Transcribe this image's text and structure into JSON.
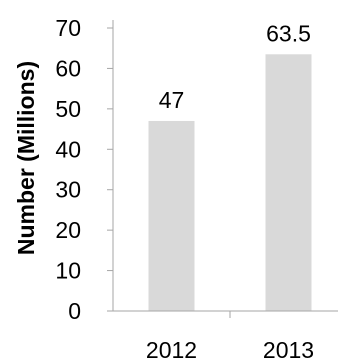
{
  "chart_data": {
    "type": "bar",
    "categories": [
      "2012",
      "2013"
    ],
    "values": [
      47,
      63.5
    ],
    "data_labels": [
      "47",
      "63.5"
    ],
    "title": "",
    "xlabel": "",
    "ylabel": "Number (Millions)",
    "ylim": [
      0,
      70
    ],
    "yticks": [
      0,
      10,
      20,
      30,
      40,
      50,
      60,
      70
    ],
    "grid": false,
    "legend": "none",
    "colors": {
      "bar": "#d9d9d9",
      "axis": "#a6a6a6",
      "text": "#000000"
    }
  }
}
